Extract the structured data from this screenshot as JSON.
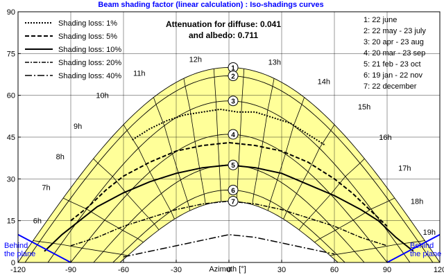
{
  "chart_data": {
    "type": "line",
    "title": "Beam shading factor (linear calculation) : Iso-shadings curves",
    "xlabel": "Azimuth [°]",
    "ylabel": "",
    "xlim": [
      -120,
      120
    ],
    "ylim": [
      0,
      90
    ],
    "x_ticks": [
      "-120",
      "-90",
      "-60",
      "-30",
      "0",
      "30",
      "60",
      "90",
      "120"
    ],
    "y_ticks": [
      "0",
      "15",
      "30",
      "45",
      "60",
      "75",
      "90"
    ],
    "attenuation_text": [
      "Attenuation for diffuse: 0.041",
      "and albedo: 0.711"
    ],
    "legend": [
      {
        "label": "Shading loss: 1%",
        "dash": "2,2",
        "width": 2
      },
      {
        "label": "Shading loss: 5%",
        "dash": "6,3",
        "width": 2
      },
      {
        "label": "Shading loss: 10%",
        "dash": "",
        "width": 2
      },
      {
        "label": "Shading loss: 20%",
        "dash": "6,2,2,2",
        "width": 1.5
      },
      {
        "label": "Shading loss: 40%",
        "dash": "10,3,2,3",
        "width": 1.5
      }
    ],
    "date_legend": [
      "1: 22 june",
      "2: 22 may - 23 july",
      "3: 20 apr - 23 aug",
      "4: 20 mar - 23 sep",
      "5: 21 feb - 23 oct",
      "6: 19 jan - 22 nov",
      "7: 22 december"
    ],
    "behind_plane_label": [
      "Behind",
      "the plane"
    ],
    "sun_paths": [
      {
        "label": "1",
        "peak": 70,
        "halfwidth": 120
      },
      {
        "label": "2",
        "peak": 67,
        "halfwidth": 116
      },
      {
        "label": "3",
        "peak": 58,
        "halfwidth": 103
      },
      {
        "label": "4",
        "peak": 46,
        "halfwidth": 90
      },
      {
        "label": "5",
        "peak": 35,
        "halfwidth": 77
      },
      {
        "label": "6",
        "peak": 26,
        "halfwidth": 66
      },
      {
        "label": "7",
        "peak": 22,
        "halfwidth": 62
      }
    ],
    "hour_labels": [
      {
        "label": "6h",
        "x": -109,
        "y": 14
      },
      {
        "label": "7h",
        "x": -104,
        "y": 26
      },
      {
        "label": "8h",
        "x": -96,
        "y": 37
      },
      {
        "label": "9h",
        "x": -86,
        "y": 48
      },
      {
        "label": "10h",
        "x": -72,
        "y": 59
      },
      {
        "label": "11h",
        "x": -51,
        "y": 67
      },
      {
        "label": "12h",
        "x": -19,
        "y": 72
      },
      {
        "label": "13h",
        "x": 26,
        "y": 71
      },
      {
        "label": "14h",
        "x": 54,
        "y": 64
      },
      {
        "label": "15h",
        "x": 77,
        "y": 55
      },
      {
        "label": "16h",
        "x": 89,
        "y": 44
      },
      {
        "label": "17h",
        "x": 100,
        "y": 33
      },
      {
        "label": "18h",
        "x": 107,
        "y": 21
      },
      {
        "label": "19h",
        "x": 114,
        "y": 10
      }
    ],
    "iso_shading_curves": [
      {
        "loss": "1%",
        "x": [
          -55,
          -45,
          -35,
          -25,
          -15,
          -5,
          5,
          15,
          25,
          35,
          45,
          55
        ],
        "y": [
          44,
          48,
          51,
          53,
          54,
          55,
          54,
          54,
          52,
          50,
          46,
          42
        ]
      },
      {
        "loss": "5%",
        "x": [
          -90,
          -80,
          -70,
          -60,
          -45,
          -30,
          -15,
          0,
          15,
          30,
          45,
          60,
          70,
          80,
          90
        ],
        "y": [
          15,
          20,
          26,
          31,
          36,
          40,
          42,
          43,
          42,
          40,
          36,
          30,
          25,
          19,
          13
        ]
      },
      {
        "loss": "10%",
        "x": [
          -105,
          -95,
          -85,
          -75,
          -60,
          -45,
          -30,
          -15,
          0,
          15,
          30,
          45,
          60,
          75,
          85,
          95,
          105
        ],
        "y": [
          4,
          10,
          15,
          20,
          25,
          29,
          32,
          34,
          35,
          34,
          32,
          28,
          24,
          19,
          15,
          9,
          4
        ]
      },
      {
        "loss": "20%",
        "x": [
          -90,
          -75,
          -60,
          -45,
          -30,
          -15,
          0,
          15,
          30,
          45,
          60,
          75,
          90
        ],
        "y": [
          6,
          9,
          13,
          16,
          19,
          21,
          22,
          21,
          19,
          16,
          13,
          9,
          6
        ]
      },
      {
        "loss": "40%",
        "x": [
          -60,
          -45,
          -30,
          -15,
          0,
          15,
          30,
          45,
          60
        ],
        "y": [
          2,
          4,
          6,
          8,
          10,
          9,
          7,
          5,
          3
        ]
      }
    ],
    "behind_plane_lines": [
      {
        "x": [
          -120,
          -90
        ],
        "y": [
          10,
          0
        ]
      },
      {
        "x": [
          120,
          90
        ],
        "y": [
          10,
          0
        ]
      }
    ],
    "fill_color": "#ffff99",
    "grid": true
  }
}
